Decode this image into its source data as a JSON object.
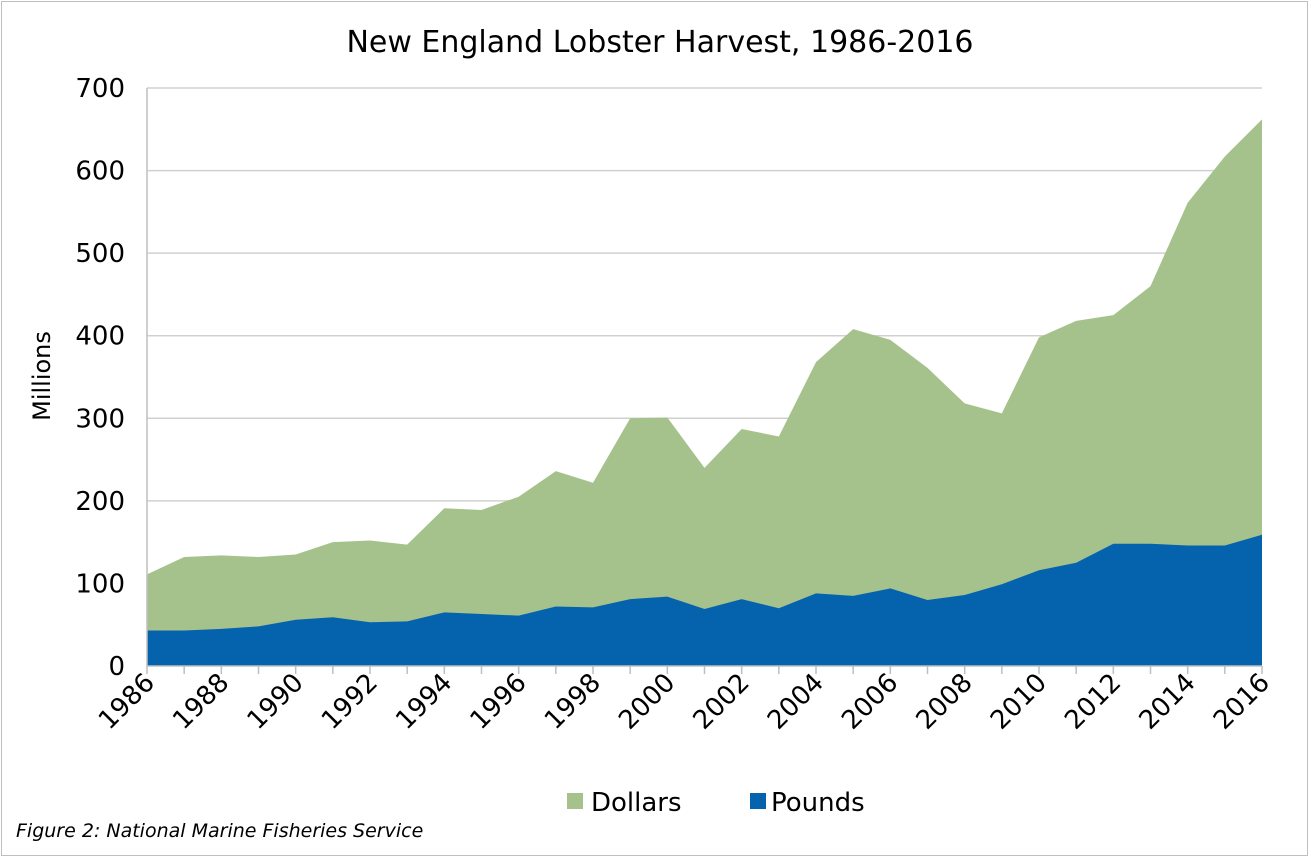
{
  "chart_data": {
    "type": "area",
    "title": "New England Lobster Harvest, 1986-2016",
    "xlabel": "",
    "ylabel": "Millions",
    "x": [
      1986,
      1987,
      1988,
      1989,
      1990,
      1991,
      1992,
      1993,
      1994,
      1995,
      1996,
      1997,
      1998,
      1999,
      2000,
      2001,
      2002,
      2003,
      2004,
      2005,
      2006,
      2007,
      2008,
      2009,
      2010,
      2011,
      2012,
      2013,
      2014,
      2015,
      2016
    ],
    "x_tick_labels": [
      "1986",
      "1988",
      "1990",
      "1992",
      "1994",
      "1996",
      "1998",
      "2000",
      "2002",
      "2004",
      "2006",
      "2008",
      "2010",
      "2012",
      "2014",
      "2016"
    ],
    "ylim": [
      0,
      700
    ],
    "y_ticks": [
      0,
      100,
      200,
      300,
      400,
      500,
      600,
      700
    ],
    "grid": true,
    "legend_position": "bottom",
    "series": [
      {
        "name": "Dollars",
        "color": "#a6c28c",
        "values": [
          111,
          132,
          134,
          132,
          135,
          150,
          152,
          147,
          191,
          189,
          205,
          236,
          222,
          300,
          301,
          240,
          287,
          278,
          368,
          408,
          395,
          361,
          318,
          306,
          398,
          418,
          425,
          460,
          561,
          617,
          662
        ]
      },
      {
        "name": "Pounds",
        "color": "#0563ae",
        "values": [
          43,
          43,
          45,
          48,
          56,
          59,
          53,
          54,
          65,
          63,
          61,
          72,
          71,
          81,
          84,
          69,
          81,
          70,
          88,
          85,
          94,
          80,
          86,
          99,
          116,
          125,
          148,
          148,
          146,
          146,
          159
        ]
      }
    ]
  },
  "caption": "Figure 2: National Marine Fisheries Service"
}
